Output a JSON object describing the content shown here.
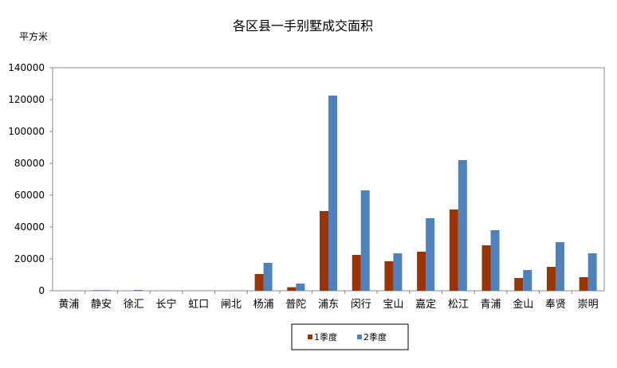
{
  "chart_data": {
    "type": "bar",
    "title": "各区县一手别墅成交面积",
    "ylabel": "平方米",
    "xlabel": "",
    "ylim": [
      0,
      140000
    ],
    "yticks": [
      0,
      20000,
      40000,
      60000,
      80000,
      100000,
      120000,
      140000
    ],
    "grid": false,
    "legend_position": "bottom-center",
    "categories": [
      "黄浦",
      "静安",
      "徐汇",
      "长宁",
      "虹口",
      "闸北",
      "杨浦",
      "普陀",
      "浦东",
      "闵行",
      "宝山",
      "嘉定",
      "松江",
      "青浦",
      "金山",
      "奉贤",
      "崇明"
    ],
    "series": [
      {
        "name": "1季度",
        "color": "#993300",
        "values": [
          0,
          300,
          0,
          0,
          0,
          0,
          10500,
          2200,
          50000,
          22500,
          18500,
          24500,
          51000,
          28500,
          8000,
          15000,
          8500
        ]
      },
      {
        "name": "2季度",
        "color": "#4f81bd",
        "values": [
          0,
          400,
          500,
          0,
          0,
          0,
          17500,
          4500,
          122500,
          63000,
          23500,
          45500,
          82000,
          38000,
          13000,
          30500,
          23500
        ]
      }
    ]
  }
}
